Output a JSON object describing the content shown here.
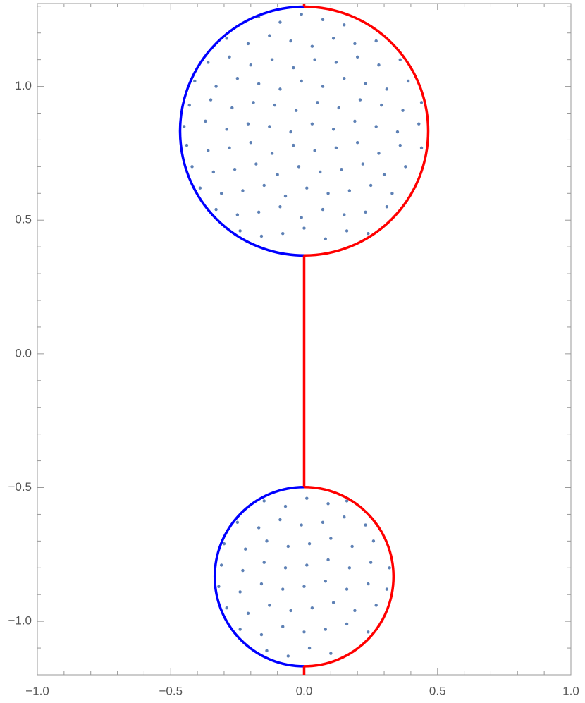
{
  "chart_data": {
    "type": "scatter",
    "xlim": [
      -1,
      1
    ],
    "ylim": [
      -1.2,
      1.31
    ],
    "xticks": [
      {
        "value": -1,
        "label": "−1.0"
      },
      {
        "value": -0.5,
        "label": "−0.5"
      },
      {
        "value": 0,
        "label": "0.0"
      },
      0.5,
      {
        "value": 1,
        "label": "1.0"
      }
    ],
    "yticks": [
      {
        "value": -1,
        "label": "−1.0"
      },
      {
        "value": -0.5,
        "label": "−0.5"
      },
      {
        "value": 0,
        "label": "0.0"
      },
      0.5,
      {
        "value": 1,
        "label": "1.0"
      }
    ],
    "xminorticks": [
      -0.9,
      -0.8,
      -0.7,
      -0.6,
      -0.4,
      -0.3,
      -0.2,
      -0.1,
      0.1,
      0.2,
      0.3,
      0.4,
      0.6,
      0.7,
      0.8,
      0.9
    ],
    "yminorticks": [
      -1.1,
      -0.9,
      -0.8,
      -0.7,
      -0.6,
      -0.4,
      -0.3,
      -0.2,
      -0.1,
      0.1,
      0.2,
      0.3,
      0.4,
      0.6,
      0.7,
      0.8,
      0.9,
      1.1,
      1.2,
      1.3
    ],
    "series": [
      {
        "color": "#5e81b5",
        "x": [
          -0.17,
          -0.09,
          -0.01,
          0.07,
          0.15,
          -0.29,
          -0.21,
          -0.13,
          -0.05,
          0.03,
          0.11,
          0.19,
          0.27,
          -0.36,
          -0.28,
          -0.2,
          -0.12,
          -0.04,
          0.04,
          0.12,
          0.2,
          0.28,
          0.36,
          -0.41,
          -0.33,
          -0.25,
          -0.17,
          -0.09,
          -0.01,
          0.07,
          0.15,
          0.23,
          0.31,
          0.39,
          -0.43,
          -0.35,
          -0.27,
          -0.19,
          -0.11,
          -0.03,
          0.05,
          0.13,
          0.21,
          0.29,
          0.37,
          0.44,
          -0.45,
          -0.37,
          -0.29,
          -0.21,
          -0.13,
          -0.05,
          0.03,
          0.11,
          0.19,
          0.27,
          0.35,
          0.43,
          -0.44,
          -0.36,
          -0.28,
          -0.2,
          -0.12,
          -0.04,
          0.04,
          0.12,
          0.2,
          0.28,
          0.36,
          0.44,
          -0.42,
          -0.34,
          -0.26,
          -0.18,
          -0.1,
          -0.02,
          0.06,
          0.14,
          0.22,
          0.3,
          0.38,
          -0.39,
          -0.31,
          -0.23,
          -0.15,
          -0.07,
          0.01,
          0.09,
          0.17,
          0.25,
          0.33,
          -0.33,
          -0.25,
          -0.17,
          -0.09,
          -0.01,
          0.07,
          0.15,
          0.23,
          0.31,
          -0.24,
          -0.16,
          -0.08,
          0,
          0.08,
          0.16,
          0.24,
          -0.15,
          -0.07,
          0.01,
          0.09,
          0.16,
          -0.25,
          -0.17,
          -0.09,
          -0.01,
          0.07,
          0.15,
          0.23,
          -0.3,
          -0.22,
          -0.14,
          -0.06,
          0.02,
          0.1,
          0.18,
          0.26,
          -0.31,
          -0.23,
          -0.15,
          -0.07,
          0.01,
          0.09,
          0.17,
          0.25,
          0.32,
          -0.32,
          -0.24,
          -0.16,
          -0.08,
          0,
          0.08,
          0.16,
          0.24,
          0.31,
          -0.29,
          -0.21,
          -0.13,
          -0.05,
          0.03,
          0.11,
          0.19,
          0.27,
          -0.24,
          -0.16,
          -0.08,
          0,
          0.08,
          0.16,
          0.24,
          -0.14,
          -0.06,
          0.02,
          0.1
        ],
        "y": [
          1.26,
          1.24,
          1.27,
          1.25,
          1.23,
          1.18,
          1.16,
          1.19,
          1.17,
          1.15,
          1.18,
          1.16,
          1.17,
          1.09,
          1.11,
          1.08,
          1.1,
          1.07,
          1.1,
          1.09,
          1.11,
          1.08,
          1.1,
          1.02,
          1.0,
          1.03,
          1.01,
          0.99,
          1.02,
          1.0,
          1.03,
          1.01,
          0.99,
          1.02,
          0.93,
          0.95,
          0.92,
          0.94,
          0.93,
          0.91,
          0.94,
          0.92,
          0.95,
          0.93,
          0.91,
          0.94,
          0.85,
          0.87,
          0.84,
          0.86,
          0.85,
          0.83,
          0.86,
          0.84,
          0.87,
          0.85,
          0.83,
          0.86,
          0.78,
          0.76,
          0.77,
          0.79,
          0.75,
          0.78,
          0.76,
          0.77,
          0.79,
          0.75,
          0.78,
          0.77,
          0.7,
          0.68,
          0.69,
          0.71,
          0.67,
          0.7,
          0.68,
          0.69,
          0.71,
          0.67,
          0.7,
          0.62,
          0.6,
          0.61,
          0.63,
          0.59,
          0.62,
          0.6,
          0.61,
          0.63,
          0.6,
          0.54,
          0.52,
          0.53,
          0.55,
          0.51,
          0.54,
          0.52,
          0.53,
          0.55,
          0.46,
          0.44,
          0.45,
          0.47,
          0.43,
          0.46,
          0.45,
          -0.55,
          -0.57,
          -0.54,
          -0.56,
          -0.55,
          -0.63,
          -0.65,
          -0.62,
          -0.64,
          -0.63,
          -0.61,
          -0.64,
          -0.71,
          -0.73,
          -0.7,
          -0.72,
          -0.71,
          -0.69,
          -0.72,
          -0.7,
          -0.79,
          -0.81,
          -0.78,
          -0.8,
          -0.79,
          -0.77,
          -0.8,
          -0.78,
          -0.8,
          -0.87,
          -0.89,
          -0.86,
          -0.88,
          -0.87,
          -0.85,
          -0.88,
          -0.86,
          -0.88,
          -0.95,
          -0.97,
          -0.94,
          -0.96,
          -0.95,
          -0.93,
          -0.96,
          -0.94,
          -1.03,
          -1.05,
          -1.02,
          -1.04,
          -1.03,
          -1.01,
          -1.04,
          -1.11,
          -1.13,
          -1.1,
          -1.12
        ]
      }
    ],
    "circles": [
      {
        "center_x": 0,
        "center_y": 0.833,
        "radius": 0.465
      },
      {
        "center_x": 0,
        "center_y": -0.833,
        "radius": 0.335
      }
    ],
    "left_half_color": "#0000ff",
    "right_half_color": "#ff0000",
    "segments": [
      {
        "color": "#ff0000",
        "x": [
          0,
          0
        ],
        "y": [
          0.368,
          -0.498
        ]
      },
      {
        "color": "#ff0000",
        "x": [
          0,
          0
        ],
        "y": [
          1.298,
          1.31
        ]
      },
      {
        "color": "#ff0000",
        "x": [
          0,
          0
        ],
        "y": [
          -1.168,
          -1.2
        ]
      }
    ]
  }
}
